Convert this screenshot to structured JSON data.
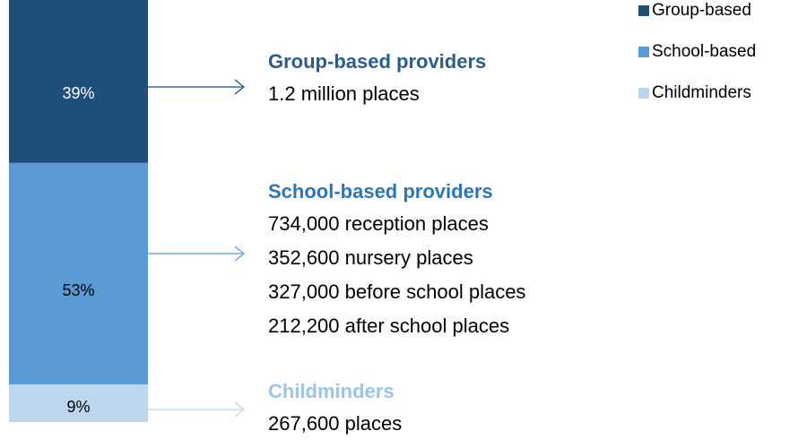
{
  "chart_data": {
    "type": "stacked-bar",
    "series": [
      {
        "name": "Group-based",
        "color": "#1f4e79",
        "values": [
          39
        ],
        "value_labels": [
          "39%"
        ]
      },
      {
        "name": "School-based",
        "color": "#5b9bd5",
        "values": [
          53
        ],
        "value_labels": [
          "53%"
        ]
      },
      {
        "name": "Childminders",
        "color": "#bdd7ee",
        "values": [
          9
        ],
        "value_labels": [
          "9%"
        ]
      }
    ],
    "annotations": [
      {
        "title": "Group-based providers",
        "color": "#2e5c8a",
        "lines": [
          "1.2 million places"
        ]
      },
      {
        "title": "School-based providers",
        "color": "#2e75b6",
        "lines": [
          "734,000 reception places",
          "352,600 nursery places",
          "327,000 before school places",
          "212,200 after school places"
        ]
      },
      {
        "title": "Childminders",
        "color": "#9dc3e6",
        "lines": [
          "267,600 places"
        ]
      }
    ]
  }
}
